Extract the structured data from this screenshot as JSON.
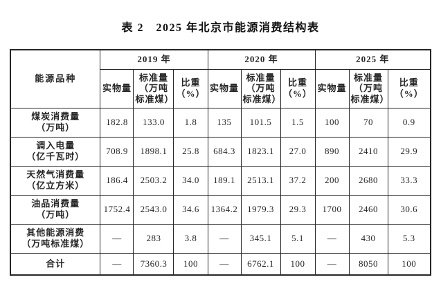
{
  "title": "表 2　2025 年北京市能源消费结构表",
  "table": {
    "corner_header": "能源品种",
    "groups": [
      {
        "year": "2019 年"
      },
      {
        "year": "2020 年"
      },
      {
        "year": "2025 年"
      }
    ],
    "sub_headers": [
      "实物量",
      "标准量\n（万吨\n标准煤）",
      "比重\n（%）"
    ],
    "rows": [
      {
        "label": "煤炭消费量\n（万吨）",
        "values": [
          "182.8",
          "133.0",
          "1.8",
          "135",
          "101.5",
          "1.5",
          "100",
          "70",
          "0.9"
        ]
      },
      {
        "label": "调入电量\n（亿千瓦时）",
        "values": [
          "708.9",
          "1898.1",
          "25.8",
          "684.3",
          "1823.1",
          "27.0",
          "890",
          "2410",
          "29.9"
        ]
      },
      {
        "label": "天然气消费量\n（亿立方米）",
        "values": [
          "186.4",
          "2503.2",
          "34.0",
          "189.1",
          "2513.1",
          "37.2",
          "200",
          "2680",
          "33.3"
        ]
      },
      {
        "label": "油品消费量\n（万吨）",
        "values": [
          "1752.4",
          "2543.0",
          "34.6",
          "1364.2",
          "1979.3",
          "29.3",
          "1700",
          "2460",
          "30.6"
        ]
      },
      {
        "label": "其他能源消费\n（万吨标准煤）",
        "values": [
          "—",
          "283",
          "3.8",
          "—",
          "345.1",
          "5.1",
          "—",
          "430",
          "5.3"
        ]
      },
      {
        "label": "合计",
        "is_total": true,
        "values": [
          "—",
          "7360.3",
          "100",
          "—",
          "6762.1",
          "100",
          "—",
          "8050",
          "100"
        ]
      }
    ]
  }
}
